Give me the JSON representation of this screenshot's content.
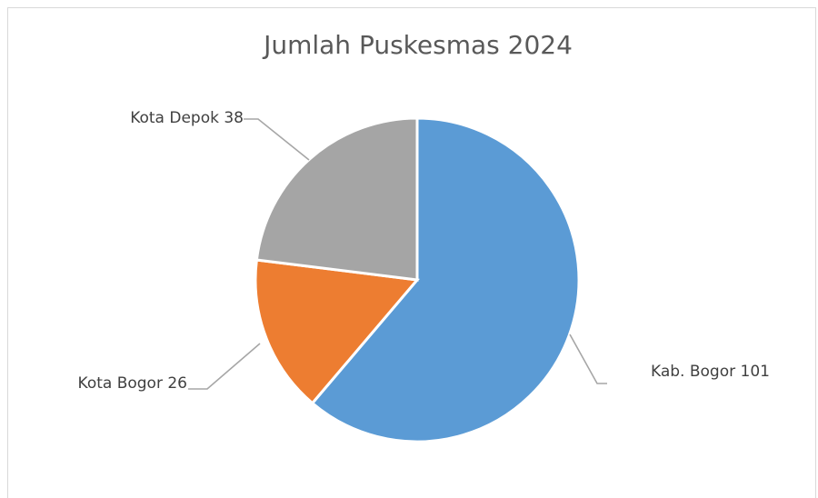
{
  "chart_data": {
    "type": "pie",
    "title": "Jumlah Puskesmas 2024",
    "slices": [
      {
        "label": "Kab. Bogor",
        "value": 101,
        "color": "#5b9bd5"
      },
      {
        "label": "Kota Bogor",
        "value": 26,
        "color": "#ed7d31"
      },
      {
        "label": "Kota Depok",
        "value": 38,
        "color": "#a5a5a5"
      }
    ],
    "data_labels": "outside-with-leader-lines",
    "legend": "none"
  }
}
